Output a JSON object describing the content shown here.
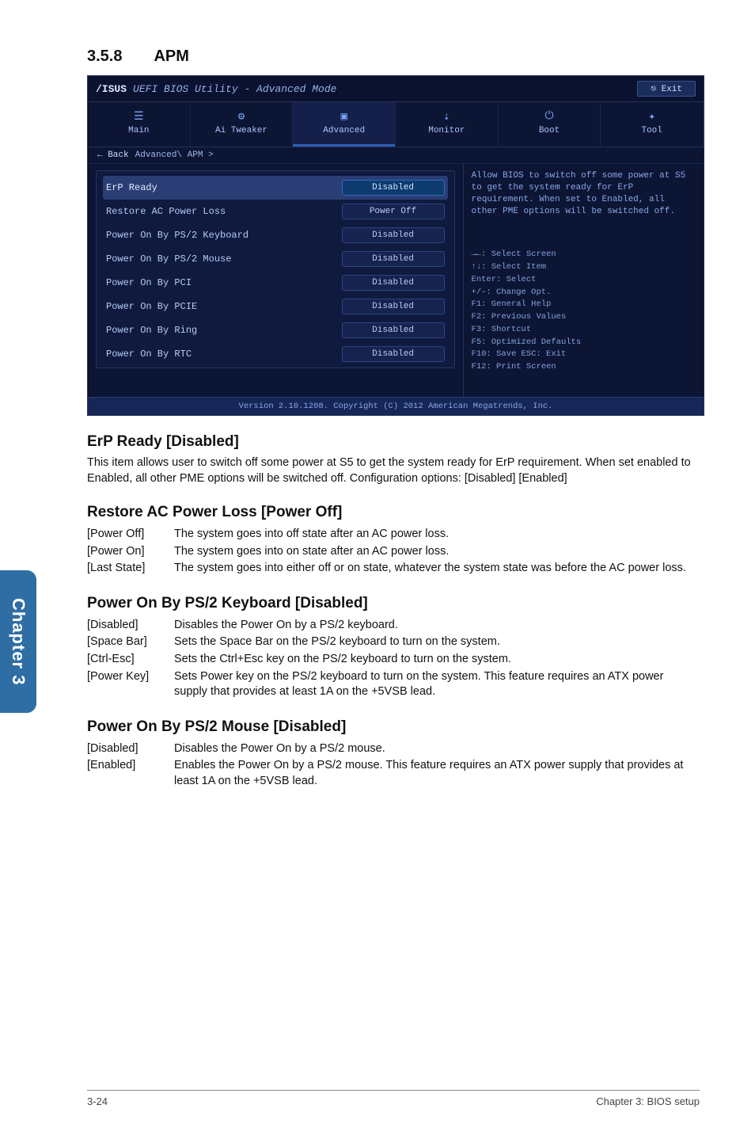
{
  "section": {
    "num": "3.5.8",
    "title": "APM"
  },
  "sidetab": "Chapter 3",
  "footer": {
    "left": "3-24",
    "right": "Chapter 3: BIOS setup"
  },
  "bios": {
    "brand": "/ISUS",
    "brand_sub": "UEFI BIOS Utility - Advanced Mode",
    "exit": "Exit",
    "tabs": [
      {
        "icon": "☰",
        "label": "Main"
      },
      {
        "icon": "⚙",
        "label": "Ai Tweaker"
      },
      {
        "icon": "▣",
        "label": "Advanced",
        "active": true
      },
      {
        "icon": "⇣",
        "label": "Monitor"
      },
      {
        "icon": "⏻",
        "label": "Boot"
      },
      {
        "icon": "✦",
        "label": "Tool"
      }
    ],
    "crumb_back": "← Back",
    "crumb_path": "Advanced\\ APM >",
    "rows": [
      {
        "name": "ErP Ready",
        "val": "Disabled",
        "sel": true
      },
      {
        "name": "Restore AC Power Loss",
        "val": "Power Off"
      },
      {
        "name": "Power On By PS/2 Keyboard",
        "val": "Disabled"
      },
      {
        "name": "Power On By PS/2 Mouse",
        "val": "Disabled"
      },
      {
        "name": "Power On By PCI",
        "val": "Disabled"
      },
      {
        "name": "Power On By PCIE",
        "val": "Disabled"
      },
      {
        "name": "Power On By Ring",
        "val": "Disabled"
      },
      {
        "name": "Power On By RTC",
        "val": "Disabled"
      }
    ],
    "help_text": "Allow BIOS to switch off some power at S5 to get the system ready for ErP requirement. When set to Enabled, all other PME options will be switched off.",
    "keys": [
      "→←: Select Screen",
      "↑↓: Select Item",
      "Enter: Select",
      "+/-: Change Opt.",
      "F1: General Help",
      "F2: Previous Values",
      "F3: Shortcut",
      "F5: Optimized Defaults",
      "F10: Save  ESC: Exit",
      "F12: Print Screen"
    ],
    "copyright": "Version 2.10.1208. Copyright (C) 2012 American Megatrends, Inc."
  },
  "blocks": [
    {
      "title": "ErP Ready [Disabled]",
      "lead": "This item allows user to switch off some power at S5 to get the system ready for ErP requirement. When set enabled to Enabled, all other PME options will be switched off. Configuration options: [Disabled] [Enabled]",
      "opts": []
    },
    {
      "title": "Restore AC Power Loss [Power Off]",
      "opts": [
        {
          "k": "[Power Off]",
          "v": "The system goes into off state after an AC power loss."
        },
        {
          "k": "[Power On]",
          "v": "The system goes into on state after an AC power loss."
        },
        {
          "k": "[Last State]",
          "v": "The system goes into either off or on state, whatever the system state was before the AC power loss."
        }
      ]
    },
    {
      "title": "Power On By PS/2 Keyboard [Disabled]",
      "opts": [
        {
          "k": "[Disabled]",
          "v": "Disables the Power On by a PS/2 keyboard."
        },
        {
          "k": "[Space Bar]",
          "v": "Sets the Space Bar on the PS/2 keyboard to turn on the system."
        },
        {
          "k": "[Ctrl-Esc]",
          "v": "Sets the Ctrl+Esc key on the PS/2 keyboard to turn on the system."
        },
        {
          "k": "[Power Key]",
          "v": "Sets Power key on the PS/2 keyboard to turn on the system. This feature requires an ATX power supply that provides at least 1A on the +5VSB lead."
        }
      ]
    },
    {
      "title": "Power On By PS/2 Mouse [Disabled]",
      "opts": [
        {
          "k": "[Disabled]",
          "v": "Disables the Power On by a PS/2 mouse."
        },
        {
          "k": "[Enabled]",
          "v": "Enables the Power On by a PS/2 mouse. This feature requires an ATX power supply that provides at least 1A on the +5VSB lead."
        }
      ]
    }
  ]
}
